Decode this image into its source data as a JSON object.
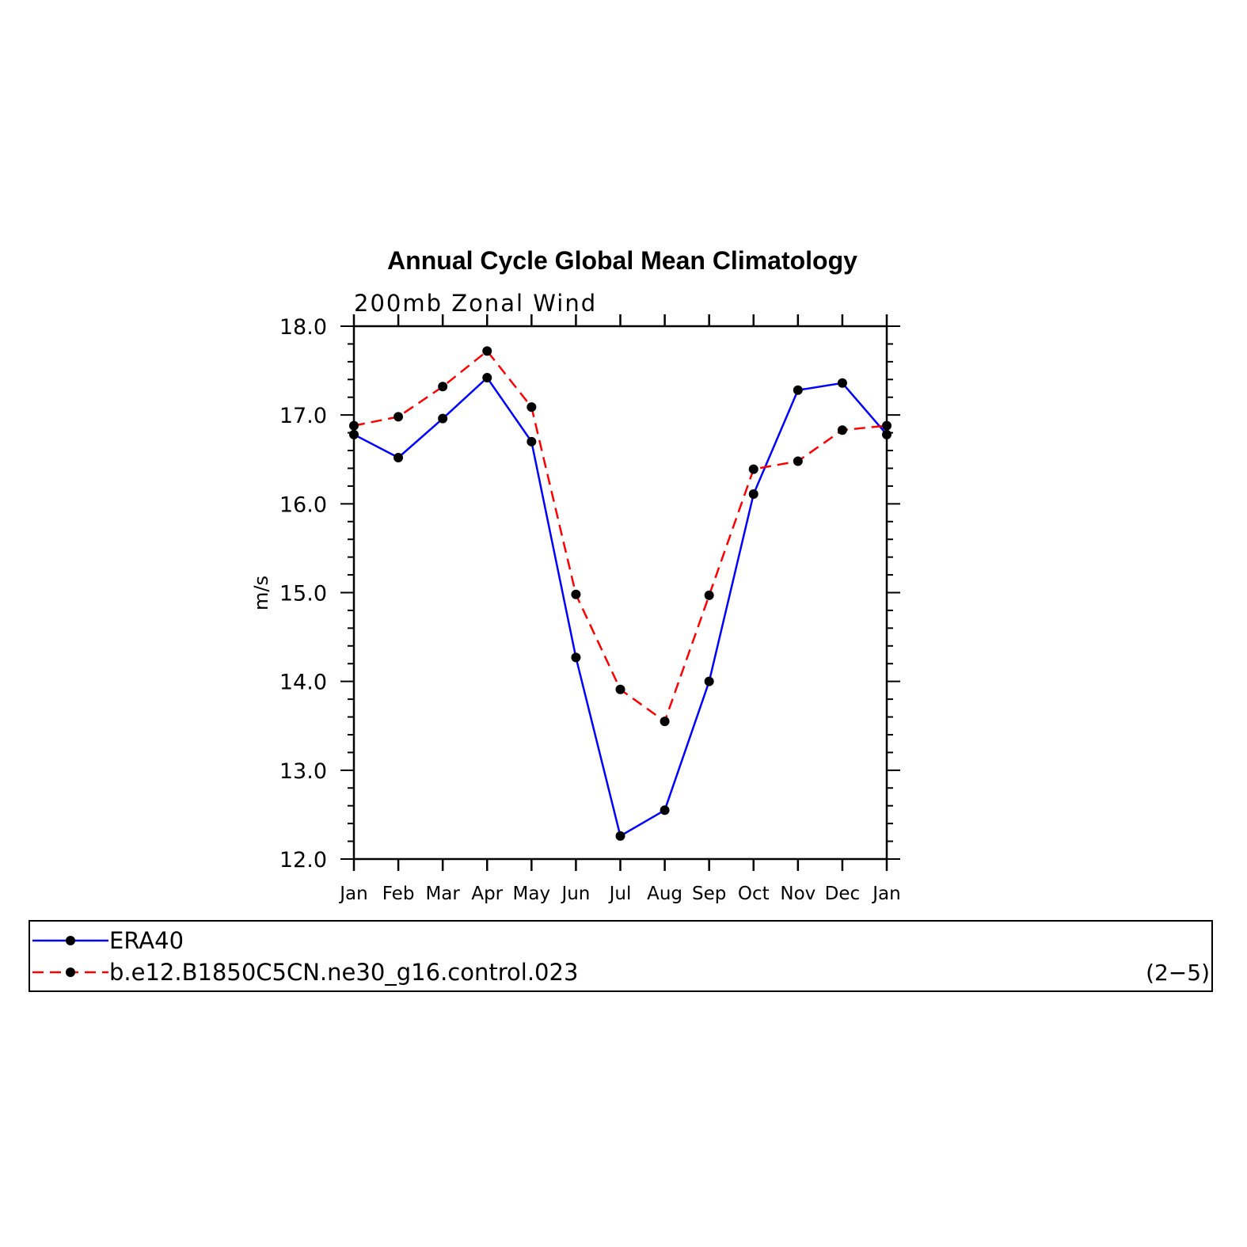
{
  "chart_data": {
    "type": "line",
    "title": "Annual Cycle Global Mean Climatology",
    "subtitle": "200mb Zonal Wind",
    "ylabel": "m/s",
    "xlabel": "",
    "categories": [
      "Jan",
      "Feb",
      "Mar",
      "Apr",
      "May",
      "Jun",
      "Jul",
      "Aug",
      "Sep",
      "Oct",
      "Nov",
      "Dec",
      "Jan"
    ],
    "ylim": [
      12.0,
      18.0
    ],
    "yticks": [
      "12.0",
      "13.0",
      "14.0",
      "15.0",
      "16.0",
      "17.0",
      "18.0"
    ],
    "grid": false,
    "legend_position": "bottom",
    "series": [
      {
        "name": "ERA40",
        "color": "#0000ff",
        "dash": "solid",
        "values": [
          16.78,
          16.52,
          16.96,
          17.42,
          16.7,
          14.27,
          12.26,
          12.55,
          14.0,
          16.11,
          17.28,
          17.36,
          16.78
        ]
      },
      {
        "name": "b.e12.B1850C5CN.ne30_g16.control.023",
        "color": "#ff0000",
        "dash": "dashed",
        "values": [
          16.88,
          16.98,
          17.32,
          17.72,
          17.09,
          14.98,
          13.91,
          13.55,
          14.97,
          16.39,
          16.48,
          16.83,
          16.88
        ]
      }
    ]
  },
  "panel_label": "(2−5)",
  "marker_color": "#000000"
}
